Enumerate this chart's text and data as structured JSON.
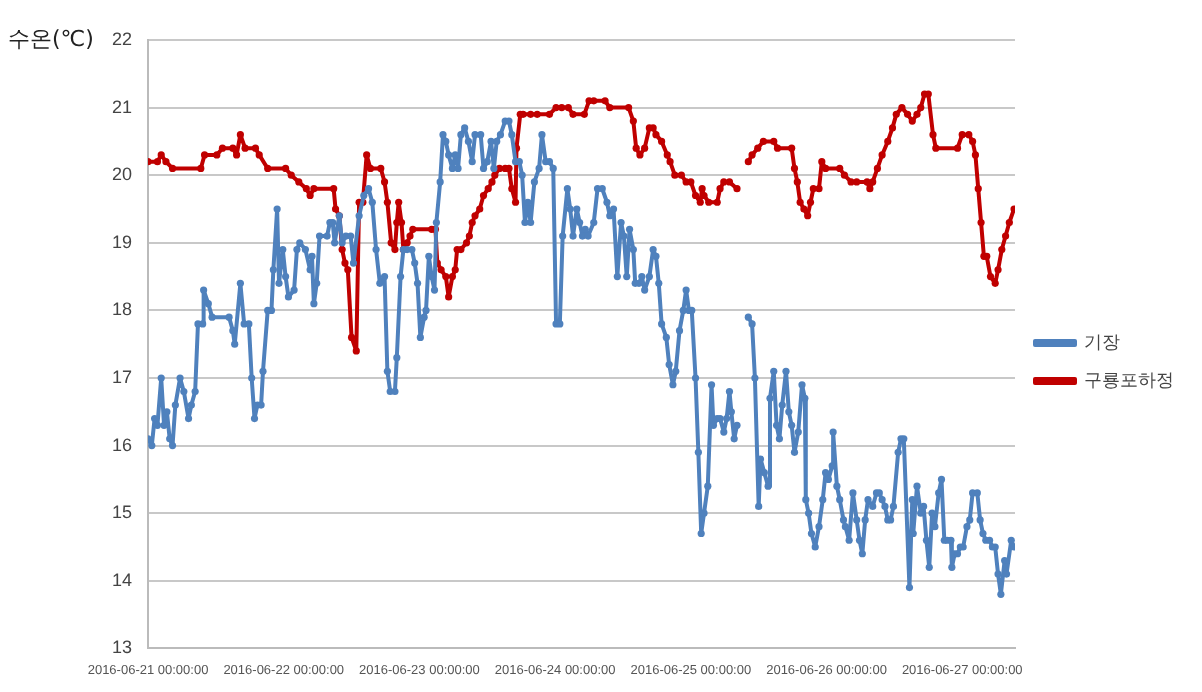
{
  "chart_data": {
    "type": "line",
    "ylabel": "수온(℃)",
    "xlim": [
      "2016-06-21T00:00",
      "2016-06-27T09:20"
    ],
    "xticks": [
      {
        "value": "2016-06-21",
        "label": "2016-06-21 00:00:00"
      },
      {
        "value": "2016-06-22",
        "label": "2016-06-22 00:00:00"
      },
      {
        "value": "2016-06-23",
        "label": "2016-06-23 00:00:00"
      },
      {
        "value": "2016-06-24",
        "label": "2016-06-24 00:00:00"
      },
      {
        "value": "2016-06-25",
        "label": "2016-06-25 00:00:00"
      },
      {
        "value": "2016-06-26",
        "label": "2016-06-26 00:00:00"
      },
      {
        "value": "2016-06-27",
        "label": "2016-06-27 00:00:00"
      }
    ],
    "ylim": [
      13,
      22
    ],
    "yticks": [
      13,
      14,
      15,
      16,
      17,
      18,
      19,
      20,
      21,
      22
    ],
    "grid": "y",
    "legend": "right",
    "marker": "circle",
    "line_style": "solid",
    "series": [
      {
        "name": "기장",
        "color": "#4f81bd",
        "x": [
          "2016-06-21T00:00",
          "2016-06-21T00:40",
          "2016-06-21T01:10",
          "2016-06-21T01:40",
          "2016-06-21T02:20",
          "2016-06-21T02:50",
          "2016-06-21T03:20",
          "2016-06-21T03:50",
          "2016-06-21T04:20",
          "2016-06-21T04:50",
          "2016-06-21T05:40",
          "2016-06-21T06:20",
          "2016-06-21T07:10",
          "2016-06-21T07:40",
          "2016-06-21T08:20",
          "2016-06-21T08:50",
          "2016-06-21T09:40",
          "2016-06-21T09:50",
          "2016-06-21T10:40",
          "2016-06-21T11:20",
          "2016-06-21T14:20",
          "2016-06-21T15:00",
          "2016-06-21T15:20",
          "2016-06-21T16:20",
          "2016-06-21T17:00",
          "2016-06-21T17:50",
          "2016-06-21T18:20",
          "2016-06-21T18:50",
          "2016-06-21T19:20",
          "2016-06-21T20:00",
          "2016-06-21T20:20",
          "2016-06-21T21:10",
          "2016-06-21T21:50",
          "2016-06-21T22:10",
          "2016-06-21T22:50",
          "2016-06-21T23:10",
          "2016-06-21T23:50",
          "2016-06-22T00:20",
          "2016-06-22T00:50",
          "2016-06-22T01:50",
          "2016-06-22T02:20",
          "2016-06-22T02:50",
          "2016-06-22T03:50",
          "2016-06-22T04:40",
          "2016-06-22T05:00",
          "2016-06-22T05:20",
          "2016-06-22T05:50",
          "2016-06-22T06:20",
          "2016-06-22T07:40",
          "2016-06-22T08:10",
          "2016-06-22T08:40",
          "2016-06-22T09:00",
          "2016-06-22T09:50",
          "2016-06-22T10:20",
          "2016-06-22T11:00",
          "2016-06-22T11:50",
          "2016-06-22T12:20",
          "2016-06-22T13:20",
          "2016-06-22T14:10",
          "2016-06-22T15:00",
          "2016-06-22T15:40",
          "2016-06-22T16:20",
          "2016-06-22T17:00",
          "2016-06-22T17:50",
          "2016-06-22T18:20",
          "2016-06-22T18:50",
          "2016-06-22T19:40",
          "2016-06-22T20:00",
          "2016-06-22T20:40",
          "2016-06-22T21:10",
          "2016-06-22T21:50",
          "2016-06-22T22:40",
          "2016-06-22T23:10",
          "2016-06-22T23:40",
          "2016-06-23T00:10",
          "2016-06-23T00:50",
          "2016-06-23T01:10",
          "2016-06-23T01:40",
          "2016-06-23T02:10",
          "2016-06-23T02:40",
          "2016-06-23T03:00",
          "2016-06-23T03:40",
          "2016-06-23T04:10",
          "2016-06-23T04:40",
          "2016-06-23T05:10",
          "2016-06-23T05:50",
          "2016-06-23T06:20",
          "2016-06-23T06:50",
          "2016-06-23T07:20",
          "2016-06-23T08:00",
          "2016-06-23T08:40",
          "2016-06-23T09:20",
          "2016-06-23T09:50",
          "2016-06-23T10:50",
          "2016-06-23T11:20",
          "2016-06-23T12:00",
          "2016-06-23T12:40",
          "2016-06-23T13:10",
          "2016-06-23T13:40",
          "2016-06-23T14:20",
          "2016-06-23T15:10",
          "2016-06-23T15:50",
          "2016-06-23T16:20",
          "2016-06-23T17:00",
          "2016-06-23T17:40",
          "2016-06-23T18:10",
          "2016-06-23T18:40",
          "2016-06-23T19:10",
          "2016-06-23T19:40",
          "2016-06-23T20:20",
          "2016-06-23T21:10",
          "2016-06-23T21:40",
          "2016-06-23T22:20",
          "2016-06-23T23:00",
          "2016-06-23T23:40",
          "2016-06-24T00:10",
          "2016-06-24T00:50",
          "2016-06-24T01:20",
          "2016-06-24T02:10",
          "2016-06-24T02:40",
          "2016-06-24T03:10",
          "2016-06-24T03:50",
          "2016-06-24T04:20",
          "2016-06-24T04:50",
          "2016-06-24T05:20",
          "2016-06-24T05:50",
          "2016-06-24T06:50",
          "2016-06-24T07:30",
          "2016-06-24T08:20",
          "2016-06-24T09:10",
          "2016-06-24T09:40",
          "2016-06-24T10:20",
          "2016-06-24T11:00",
          "2016-06-24T11:40",
          "2016-06-24T12:10",
          "2016-06-24T12:40",
          "2016-06-24T13:10",
          "2016-06-24T13:50",
          "2016-06-24T14:10",
          "2016-06-24T14:50",
          "2016-06-24T15:20",
          "2016-06-24T15:50",
          "2016-06-24T16:40",
          "2016-06-24T17:20",
          "2016-06-24T17:50",
          "2016-06-24T18:20",
          "2016-06-24T18:50",
          "2016-06-24T19:40",
          "2016-06-24T20:10",
          "2016-06-24T20:50",
          "2016-06-24T21:20",
          "2016-06-24T22:00",
          "2016-06-24T22:40",
          "2016-06-24T23:10",
          "2016-06-24T23:40",
          "2016-06-25T00:10",
          "2016-06-25T00:50",
          "2016-06-25T01:20",
          "2016-06-25T01:50",
          "2016-06-25T02:20",
          "2016-06-25T03:00",
          "2016-06-25T03:40",
          "2016-06-25T04:00",
          "2016-06-25T04:40",
          "2016-06-25T05:10",
          "2016-06-25T05:50",
          "2016-06-25T06:20",
          "2016-06-25T06:50",
          "2016-06-25T07:10",
          "2016-06-25T07:40",
          "2016-06-25T08:10",
          "2016-06-25T09:00",
          "2016-06-25T10:10",
          "2016-06-25T10:50",
          "2016-06-25T11:20",
          "2016-06-25T12:00",
          "2016-06-25T12:20",
          "2016-06-25T13:00",
          "2016-06-25T13:40",
          "2016-06-25T14:00",
          "2016-06-25T14:40",
          "2016-06-25T15:10",
          "2016-06-25T15:40",
          "2016-06-25T16:10",
          "2016-06-25T16:50",
          "2016-06-25T17:20",
          "2016-06-25T17:50",
          "2016-06-25T18:20",
          "2016-06-25T19:00",
          "2016-06-25T19:40",
          "2016-06-25T20:10",
          "2016-06-25T20:20",
          "2016-06-25T20:50",
          "2016-06-25T21:20",
          "2016-06-25T22:00",
          "2016-06-25T22:40",
          "2016-06-25T23:20",
          "2016-06-25T23:50",
          "2016-06-26T00:20",
          "2016-06-26T01:00",
          "2016-06-26T01:10",
          "2016-06-26T01:50",
          "2016-06-26T02:20",
          "2016-06-26T03:00",
          "2016-06-26T03:20",
          "2016-06-26T04:00",
          "2016-06-26T04:40",
          "2016-06-26T05:20",
          "2016-06-26T05:50",
          "2016-06-26T06:20",
          "2016-06-26T06:50",
          "2016-06-26T07:20",
          "2016-06-26T08:10",
          "2016-06-26T08:50",
          "2016-06-26T09:20",
          "2016-06-26T09:50",
          "2016-06-26T10:20",
          "2016-06-26T10:50",
          "2016-06-26T11:20",
          "2016-06-26T11:50",
          "2016-06-26T12:40",
          "2016-06-26T13:10",
          "2016-06-26T13:40",
          "2016-06-26T14:40",
          "2016-06-26T15:10",
          "2016-06-26T15:20",
          "2016-06-26T16:00",
          "2016-06-26T16:40",
          "2016-06-26T17:10",
          "2016-06-26T17:40",
          "2016-06-26T18:10",
          "2016-06-26T18:40",
          "2016-06-26T19:10",
          "2016-06-26T19:50",
          "2016-06-26T20:20",
          "2016-06-26T20:50",
          "2016-06-26T21:20",
          "2016-06-26T22:00",
          "2016-06-26T22:10",
          "2016-06-26T22:40",
          "2016-06-26T23:10",
          "2016-06-26T23:40",
          "2016-06-27T00:10",
          "2016-06-27T00:50",
          "2016-06-27T01:20",
          "2016-06-27T01:50",
          "2016-06-27T02:40",
          "2016-06-27T03:10",
          "2016-06-27T03:40",
          "2016-06-27T04:10",
          "2016-06-27T04:50",
          "2016-06-27T05:20",
          "2016-06-27T05:50",
          "2016-06-27T06:20",
          "2016-06-27T06:50",
          "2016-06-27T07:30",
          "2016-06-27T07:50",
          "2016-06-27T08:40",
          "2016-06-27T09:10"
        ],
        "values": [
          16.1,
          16.0,
          16.4,
          16.3,
          17.0,
          16.3,
          16.5,
          16.1,
          16.0,
          16.6,
          17.0,
          16.8,
          16.4,
          16.6,
          16.8,
          17.8,
          17.8,
          18.3,
          18.1,
          17.9,
          17.9,
          17.7,
          17.5,
          18.4,
          17.8,
          17.8,
          17.0,
          16.4,
          16.6,
          16.6,
          17.1,
          18.0,
          18.0,
          18.6,
          19.5,
          18.4,
          18.9,
          18.5,
          18.2,
          18.3,
          18.9,
          19.0,
          18.9,
          18.6,
          18.8,
          18.1,
          18.4,
          19.1,
          19.1,
          19.3,
          19.3,
          19.0,
          19.4,
          19.0,
          19.1,
          19.1,
          18.7,
          19.4,
          19.7,
          19.8,
          19.6,
          18.9,
          18.4,
          18.5,
          17.1,
          16.8,
          16.8,
          17.3,
          18.5,
          18.9,
          18.9,
          18.9,
          18.7,
          18.4,
          17.6,
          17.9,
          18.0,
          18.8,
          18.5,
          18.3,
          19.3,
          19.9,
          20.6,
          20.5,
          20.3,
          20.1,
          20.3,
          20.1,
          20.6,
          20.7,
          20.5,
          20.2,
          20.6,
          20.6,
          20.1,
          20.2,
          20.5,
          20.1,
          20.5,
          20.6,
          20.8,
          20.8,
          20.6,
          20.2,
          20.2,
          20.0,
          19.3,
          19.6,
          19.3,
          19.9,
          20.1,
          20.6,
          20.2,
          20.2,
          20.1,
          17.8,
          17.8,
          19.1,
          19.8,
          19.5,
          19.1,
          19.5,
          19.3,
          19.1,
          19.2,
          19.1,
          19.3,
          19.8,
          19.8,
          19.6,
          19.4,
          19.5,
          18.5,
          19.3,
          19.1,
          18.5,
          19.2,
          18.9,
          18.4,
          18.4,
          18.5,
          18.3,
          18.5,
          18.9,
          18.8,
          18.4,
          17.8,
          17.6,
          17.2,
          16.9,
          17.1,
          17.7,
          18.0,
          18.3,
          18.0,
          18.0,
          17.0,
          15.9,
          14.7,
          15.0,
          15.4,
          16.9,
          16.3,
          16.4,
          16.4,
          16.2,
          16.4,
          16.8,
          16.5,
          16.1,
          16.3,
          null,
          17.9,
          17.8,
          17.0,
          15.1,
          15.8,
          15.6,
          15.4,
          16.7,
          17.1,
          16.3,
          16.1,
          16.6,
          17.1,
          16.5,
          16.3,
          15.9,
          16.2,
          16.9,
          16.7,
          15.2,
          15.0,
          14.7,
          14.5,
          14.8,
          15.2,
          15.6,
          15.5,
          15.7,
          16.2,
          15.4,
          15.2,
          14.9,
          14.8,
          14.6,
          15.3,
          14.9,
          14.6,
          14.4,
          14.9,
          15.2,
          15.1,
          15.3,
          15.3,
          15.2,
          15.1,
          14.9,
          14.9,
          15.1,
          15.9,
          16.1,
          16.1,
          13.9,
          15.2,
          14.7,
          15.4,
          15.0,
          15.1,
          14.6,
          14.2,
          15.0,
          14.8,
          15.3,
          15.5,
          14.6,
          14.6,
          14.6,
          14.2,
          14.4,
          14.4,
          14.5,
          14.5,
          14.8,
          14.9,
          15.3,
          15.3,
          14.9,
          14.7,
          14.6,
          14.6,
          14.5,
          14.5,
          14.1,
          13.8,
          14.3,
          14.1,
          14.6,
          14.5
        ]
      },
      {
        "name": "구룡포하정",
        "color": "#c00000",
        "x": [
          "2016-06-21T00:00",
          "2016-06-21T01:40",
          "2016-06-21T02:20",
          "2016-06-21T03:10",
          "2016-06-21T04:20",
          "2016-06-21T09:20",
          "2016-06-21T10:00",
          "2016-06-21T12:10",
          "2016-06-21T13:10",
          "2016-06-21T15:00",
          "2016-06-21T15:40",
          "2016-06-21T16:20",
          "2016-06-21T17:10",
          "2016-06-21T19:00",
          "2016-06-21T19:40",
          "2016-06-21T21:10",
          "2016-06-22T00:20",
          "2016-06-22T01:20",
          "2016-06-22T02:40",
          "2016-06-22T04:00",
          "2016-06-22T04:40",
          "2016-06-22T05:20",
          "2016-06-22T08:50",
          "2016-06-22T09:10",
          "2016-06-22T09:50",
          "2016-06-22T10:20",
          "2016-06-22T10:50",
          "2016-06-22T11:20",
          "2016-06-22T12:00",
          "2016-06-22T12:50",
          "2016-06-22T13:20",
          "2016-06-22T14:00",
          "2016-06-22T14:40",
          "2016-06-22T15:20",
          "2016-06-22T17:10",
          "2016-06-22T17:50",
          "2016-06-22T18:20",
          "2016-06-22T19:00",
          "2016-06-22T19:40",
          "2016-06-22T20:00",
          "2016-06-22T20:20",
          "2016-06-22T20:50",
          "2016-06-22T21:10",
          "2016-06-22T21:50",
          "2016-06-22T22:20",
          "2016-06-22T22:50",
          "2016-06-23T02:10",
          "2016-06-23T02:50",
          "2016-06-23T03:10",
          "2016-06-23T03:50",
          "2016-06-23T04:40",
          "2016-06-23T05:10",
          "2016-06-23T05:50",
          "2016-06-23T06:20",
          "2016-06-23T06:40",
          "2016-06-23T07:20",
          "2016-06-23T08:20",
          "2016-06-23T08:50",
          "2016-06-23T09:20",
          "2016-06-23T09:50",
          "2016-06-23T10:40",
          "2016-06-23T11:20",
          "2016-06-23T12:10",
          "2016-06-23T12:50",
          "2016-06-23T13:20",
          "2016-06-23T14:10",
          "2016-06-23T15:10",
          "2016-06-23T15:50",
          "2016-06-23T16:20",
          "2016-06-23T17:00",
          "2016-06-23T17:10",
          "2016-06-23T17:50",
          "2016-06-23T18:20",
          "2016-06-23T19:40",
          "2016-06-23T20:50",
          "2016-06-23T23:00",
          "2016-06-24T00:10",
          "2016-06-24T01:10",
          "2016-06-24T02:20",
          "2016-06-24T03:10",
          "2016-06-24T05:10",
          "2016-06-24T06:00",
          "2016-06-24T06:50",
          "2016-06-24T08:50",
          "2016-06-24T09:40",
          "2016-06-24T13:00",
          "2016-06-24T13:50",
          "2016-06-24T14:20",
          "2016-06-24T15:00",
          "2016-06-24T15:50",
          "2016-06-24T16:40",
          "2016-06-24T17:20",
          "2016-06-24T17:50",
          "2016-06-24T18:50",
          "2016-06-24T19:50",
          "2016-06-24T20:20",
          "2016-06-24T21:10",
          "2016-06-24T22:20",
          "2016-06-24T23:10",
          "2016-06-25T00:00",
          "2016-06-25T00:50",
          "2016-06-25T01:40",
          "2016-06-25T02:00",
          "2016-06-25T02:20",
          "2016-06-25T03:10",
          "2016-06-25T04:40",
          "2016-06-25T05:10",
          "2016-06-25T05:50",
          "2016-06-25T06:50",
          "2016-06-25T08:10",
          "2016-06-25T09:00",
          "2016-06-25T10:10",
          "2016-06-25T10:50",
          "2016-06-25T11:50",
          "2016-06-25T12:50",
          "2016-06-25T14:40",
          "2016-06-25T15:20",
          "2016-06-25T17:50",
          "2016-06-25T18:20",
          "2016-06-25T18:50",
          "2016-06-25T19:20",
          "2016-06-25T20:00",
          "2016-06-25T20:40",
          "2016-06-25T21:10",
          "2016-06-25T21:40",
          "2016-06-25T22:40",
          "2016-06-25T23:10",
          "2016-06-25T23:50",
          "2016-06-26T02:20",
          "2016-06-26T03:10",
          "2016-06-26T04:20",
          "2016-06-26T05:20",
          "2016-06-26T07:10",
          "2016-06-26T07:40",
          "2016-06-26T08:10",
          "2016-06-26T09:00",
          "2016-06-26T09:50",
          "2016-06-26T10:50",
          "2016-06-26T11:40",
          "2016-06-26T12:20",
          "2016-06-26T13:20",
          "2016-06-26T14:20",
          "2016-06-26T15:10",
          "2016-06-26T16:00",
          "2016-06-26T16:40",
          "2016-06-26T17:20",
          "2016-06-26T18:00",
          "2016-06-26T18:50",
          "2016-06-26T19:20",
          "2016-06-26T23:10",
          "2016-06-27T00:00",
          "2016-06-27T01:10",
          "2016-06-27T01:50",
          "2016-06-27T02:20",
          "2016-06-27T02:50",
          "2016-06-27T03:20",
          "2016-06-27T03:50",
          "2016-06-27T04:20",
          "2016-06-27T05:00",
          "2016-06-27T05:50",
          "2016-06-27T06:20",
          "2016-06-27T07:00",
          "2016-06-27T07:40",
          "2016-06-27T08:20",
          "2016-06-27T09:10"
        ],
        "values": [
          20.2,
          20.2,
          20.3,
          20.2,
          20.1,
          20.1,
          20.3,
          20.3,
          20.4,
          20.4,
          20.3,
          20.6,
          20.4,
          20.4,
          20.3,
          20.1,
          20.1,
          20.0,
          19.9,
          19.8,
          19.7,
          19.8,
          19.8,
          19.5,
          19.4,
          18.9,
          18.7,
          18.6,
          17.6,
          17.4,
          19.6,
          19.6,
          20.3,
          20.1,
          20.1,
          19.9,
          19.6,
          19.0,
          18.9,
          19.3,
          19.6,
          19.3,
          18.9,
          19.0,
          19.1,
          19.2,
          19.2,
          19.2,
          18.7,
          18.6,
          18.5,
          18.2,
          18.5,
          18.6,
          18.9,
          18.9,
          19.0,
          19.1,
          19.3,
          19.4,
          19.5,
          19.7,
          19.8,
          19.9,
          20.0,
          20.1,
          20.1,
          20.1,
          19.8,
          19.6,
          20.4,
          20.9,
          20.9,
          20.9,
          20.9,
          20.9,
          21.0,
          21.0,
          21.0,
          20.9,
          20.9,
          21.1,
          21.1,
          21.1,
          21.0,
          21.0,
          20.8,
          20.4,
          20.3,
          20.4,
          20.7,
          20.7,
          20.6,
          20.5,
          20.3,
          20.2,
          20.0,
          20.0,
          19.9,
          19.9,
          19.7,
          19.6,
          19.8,
          19.7,
          19.6,
          19.6,
          19.8,
          19.9,
          19.9,
          19.8,
          null,
          20.2,
          20.3,
          20.4,
          20.5,
          20.5,
          20.4,
          20.4,
          20.1,
          19.9,
          19.6,
          19.5,
          19.4,
          19.6,
          19.8,
          19.8,
          20.2,
          20.1,
          20.1,
          20.0,
          19.9,
          19.9,
          19.9,
          19.8,
          19.9,
          20.1,
          20.3,
          20.5,
          20.7,
          20.9,
          21.0,
          20.9,
          20.8,
          20.9,
          21.0,
          21.2,
          21.2,
          20.6,
          20.4,
          20.4,
          20.6,
          20.6,
          20.5,
          20.3,
          19.8,
          19.3,
          18.8,
          18.8,
          18.5,
          18.4,
          18.6,
          18.9,
          19.1,
          19.3,
          19.5
        ]
      }
    ]
  }
}
